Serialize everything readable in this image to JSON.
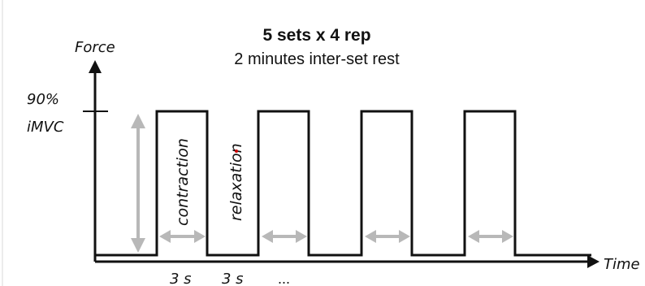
{
  "title": "5 sets x 4 rep",
  "subtitle": "2 minutes inter-set rest",
  "y_axis_label": "Force",
  "x_axis_label": "Time",
  "level_label_line1": "90%",
  "level_label_line2": "iMVC",
  "contraction_label": "contraction",
  "relaxation_label": "relaxation",
  "contraction_duration": "3 s",
  "relaxation_duration": "3 s",
  "continuation": "...",
  "pulse_count": 4,
  "colors": {
    "line": "#111111",
    "arrow": "#b8b8b8",
    "accent_dot": "#cc0000"
  }
}
